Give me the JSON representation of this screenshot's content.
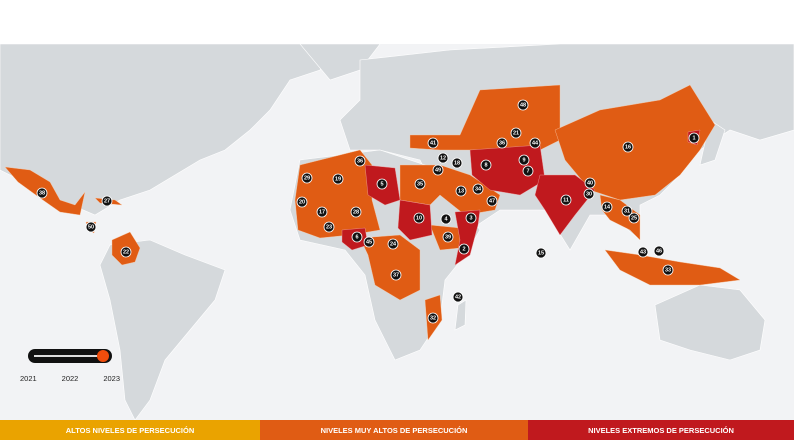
{
  "colors": {
    "high": "#eaa300",
    "very_high": "#e05c14",
    "extreme": "#c0191e",
    "land": "#d5d9dc",
    "water": "#f2f3f5"
  },
  "timeline": {
    "years": [
      "2021",
      "2022",
      "2023"
    ],
    "selected": "2023"
  },
  "legend": [
    {
      "label": "ALTOS NIVELES DE PERSECUCIÓN",
      "level": "high"
    },
    {
      "label": "NIVELES MUY ALTOS DE PERSECUCIÓN",
      "level": "very_high"
    },
    {
      "label": "NIVELES EXTREMOS DE PERSECUCIÓN",
      "level": "extreme"
    }
  ],
  "markers": [
    {
      "rank": "38",
      "level": "very_high"
    },
    {
      "rank": "27",
      "level": "very_high"
    },
    {
      "rank": "50",
      "level": "very_high"
    },
    {
      "rank": "22",
      "level": "very_high"
    },
    {
      "rank": "48",
      "level": "very_high"
    },
    {
      "rank": "41",
      "level": "very_high"
    },
    {
      "rank": "21",
      "level": "very_high"
    },
    {
      "rank": "36",
      "level": "very_high"
    },
    {
      "rank": "44",
      "level": "very_high"
    },
    {
      "rank": "12",
      "level": "very_high"
    },
    {
      "rank": "18",
      "level": "very_high"
    },
    {
      "rank": "8",
      "level": "extreme"
    },
    {
      "rank": "9",
      "level": "extreme"
    },
    {
      "rank": "7",
      "level": "extreme"
    },
    {
      "rank": "49",
      "level": "very_high"
    },
    {
      "rank": "36",
      "level": "very_high"
    },
    {
      "rank": "29",
      "level": "very_high"
    },
    {
      "rank": "19",
      "level": "very_high"
    },
    {
      "rank": "5",
      "level": "extreme"
    },
    {
      "rank": "35",
      "level": "very_high"
    },
    {
      "rank": "13",
      "level": "very_high"
    },
    {
      "rank": "34",
      "level": "very_high"
    },
    {
      "rank": "47",
      "level": "very_high"
    },
    {
      "rank": "20",
      "level": "very_high"
    },
    {
      "rank": "17",
      "level": "very_high"
    },
    {
      "rank": "28",
      "level": "very_high"
    },
    {
      "rank": "23",
      "level": "very_high"
    },
    {
      "rank": "10",
      "level": "extreme"
    },
    {
      "rank": "4",
      "level": "extreme"
    },
    {
      "rank": "3",
      "level": "extreme"
    },
    {
      "rank": "6",
      "level": "extreme"
    },
    {
      "rank": "45",
      "level": "very_high"
    },
    {
      "rank": "24",
      "level": "very_high"
    },
    {
      "rank": "39",
      "level": "very_high"
    },
    {
      "rank": "2",
      "level": "extreme"
    },
    {
      "rank": "15",
      "level": "very_high"
    },
    {
      "rank": "37",
      "level": "very_high"
    },
    {
      "rank": "42",
      "level": "very_high"
    },
    {
      "rank": "32",
      "level": "very_high"
    },
    {
      "rank": "1",
      "level": "extreme"
    },
    {
      "rank": "16",
      "level": "very_high"
    },
    {
      "rank": "40",
      "level": "very_high"
    },
    {
      "rank": "30",
      "level": "very_high"
    },
    {
      "rank": "11",
      "level": "extreme"
    },
    {
      "rank": "14",
      "level": "very_high"
    },
    {
      "rank": "31",
      "level": "very_high"
    },
    {
      "rank": "25",
      "level": "very_high"
    },
    {
      "rank": "43",
      "level": "very_high"
    },
    {
      "rank": "46",
      "level": "very_high"
    },
    {
      "rank": "33",
      "level": "very_high"
    }
  ]
}
